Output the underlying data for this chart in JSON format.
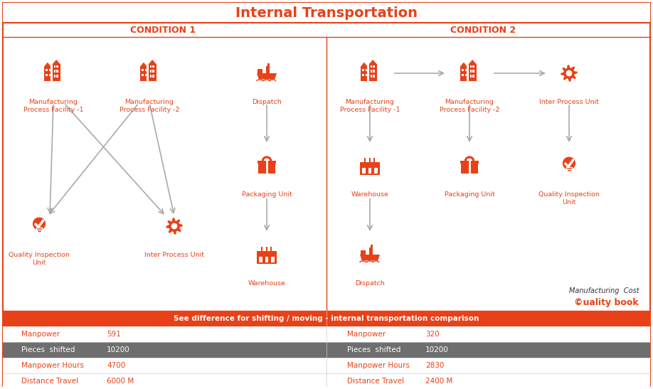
{
  "title": "Internal Transportation",
  "title_color": "#E84118",
  "title_fontsize": 14,
  "background_color": "#FFFFFF",
  "border_color": "#E84118",
  "condition1_label": "CONDITION 1",
  "condition2_label": "CONDITION 2",
  "condition_label_color": "#E84118",
  "condition_label_fontsize": 9,
  "orange": "#E84118",
  "arrow_color": "#AAAAAA",
  "table_header_bg": "#E84118",
  "table_header_color": "#FFFFFF",
  "table_row2_bg": "#6E6E6E",
  "table_header_text": "See difference for shifting / moving - internal transportation comparison",
  "table_rows": [
    [
      "Manpower",
      "591",
      "Manpower",
      "320"
    ],
    [
      "Pieces  shifted",
      "10200",
      "Pieces  shifted",
      "10200"
    ],
    [
      "Manpower Hours",
      "4700",
      "Manpower Hours",
      "2830"
    ],
    [
      "Distance Travel",
      "6000 M",
      "Distance Travel",
      "2400 M"
    ]
  ],
  "watermark_line1": "Manufacturing  Cost",
  "watermark_line2": "©uality book"
}
